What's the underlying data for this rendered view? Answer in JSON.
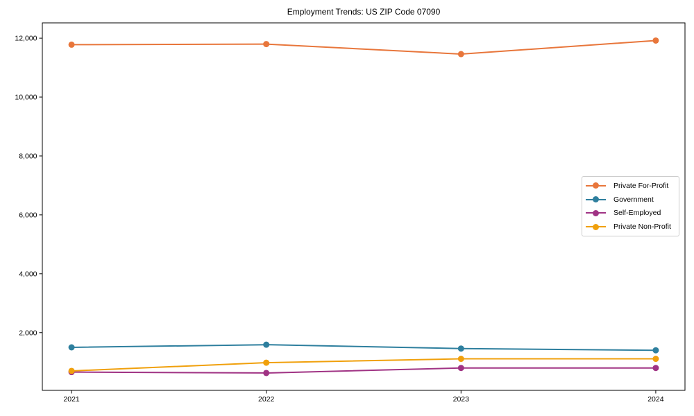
{
  "chart_data": {
    "type": "line",
    "title": "Employment Trends: US ZIP Code 07090",
    "xlabel": "",
    "ylabel": "",
    "categories": [
      "2021",
      "2022",
      "2023",
      "2024"
    ],
    "series": [
      {
        "name": "Private For-Profit",
        "color": "#E8763B",
        "values": [
          11780,
          11800,
          11460,
          11920
        ]
      },
      {
        "name": "Government",
        "color": "#2E7F9E",
        "values": [
          1500,
          1590,
          1460,
          1400
        ]
      },
      {
        "name": "Self-Employed",
        "color": "#A03384",
        "values": [
          660,
          630,
          800,
          800
        ]
      },
      {
        "name": "Private Non-Profit",
        "color": "#F0A00C",
        "values": [
          700,
          980,
          1110,
          1110
        ]
      }
    ],
    "ylim": [
      40,
      12520
    ],
    "yticks": [
      2000,
      4000,
      6000,
      8000,
      10000,
      12000
    ],
    "ytick_labels": [
      "2,000",
      "4,000",
      "6,000",
      "8,000",
      "10,000",
      "12,000"
    ],
    "grid": false,
    "legend_position": "center right",
    "axis_color": "#000000",
    "marker": "circle",
    "marker_radius": 4.5,
    "line_width": 2
  }
}
